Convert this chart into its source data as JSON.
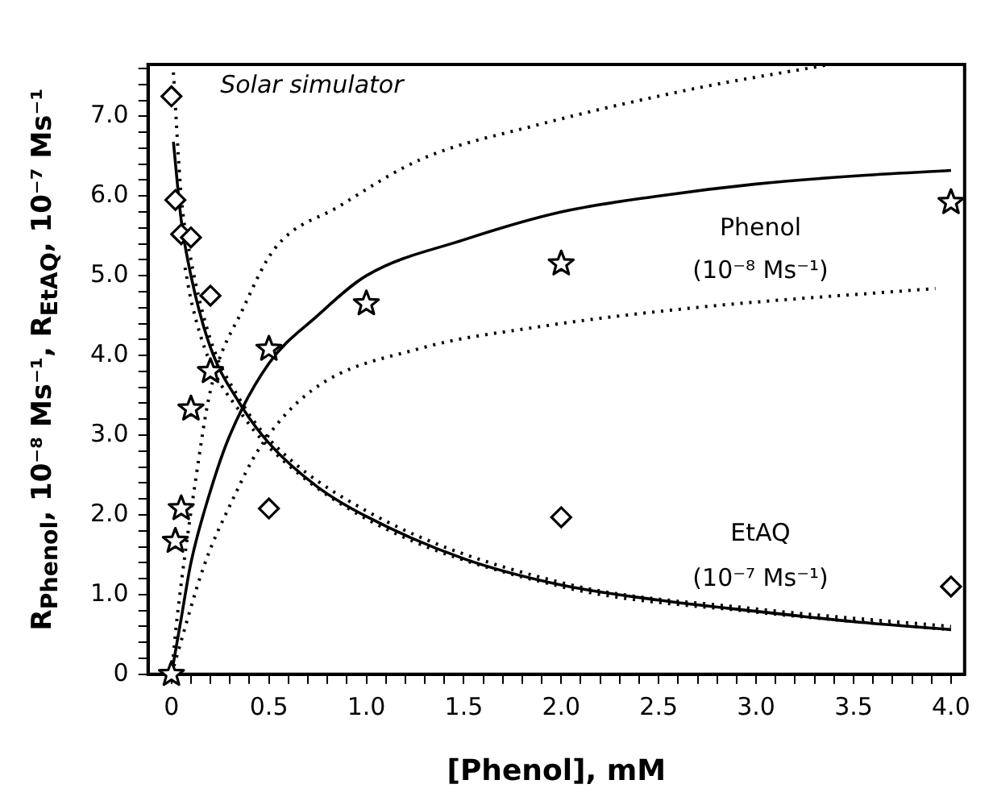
{
  "chart_data": {
    "type": "scatter",
    "title": "Solar simulator",
    "xlabel": "[Phenol], mM",
    "ylabel": "R$_{Phenol}$, 10⁻⁸ Ms⁻¹, R$_{EtAQ}$, 10⁻⁷ Ms⁻¹",
    "xlim": [
      -0.12,
      4.07
    ],
    "ylim": [
      0,
      7.65
    ],
    "xticks": [
      0,
      {
        "value": 0.1,
        "label": null
      },
      {
        "value": 0.2,
        "label": null
      },
      {
        "value": 0.3,
        "label": null
      },
      {
        "value": 0.4,
        "label": null
      },
      0.5,
      {
        "value": 0.6,
        "label": null
      },
      {
        "value": 0.7,
        "label": null
      },
      {
        "value": 0.8,
        "label": null
      },
      {
        "value": 0.9,
        "label": null
      },
      {
        "value": 1,
        "label": "1.0"
      },
      {
        "value": 1.1,
        "label": null
      },
      {
        "value": 1.2,
        "label": null
      },
      {
        "value": 1.3,
        "label": null
      },
      {
        "value": 1.4,
        "label": null
      },
      1.5,
      {
        "value": 1.6,
        "label": null
      },
      {
        "value": 1.7,
        "label": null
      },
      {
        "value": 1.8,
        "label": null
      },
      {
        "value": 1.9,
        "label": null
      },
      {
        "value": 2,
        "label": "2.0"
      },
      {
        "value": 2.1,
        "label": null
      },
      {
        "value": 2.2,
        "label": null
      },
      {
        "value": 2.3,
        "label": null
      },
      {
        "value": 2.4,
        "label": null
      },
      2.5,
      {
        "value": 2.6,
        "label": null
      },
      {
        "value": 2.7,
        "label": null
      },
      {
        "value": 2.8,
        "label": null
      },
      {
        "value": 2.9,
        "label": null
      },
      {
        "value": 3,
        "label": "3.0"
      },
      {
        "value": 3.1,
        "label": null
      },
      {
        "value": 3.2,
        "label": null
      },
      {
        "value": 3.3,
        "label": null
      },
      {
        "value": 3.4,
        "label": null
      },
      3.5,
      {
        "value": 3.6,
        "label": null
      },
      {
        "value": 3.7,
        "label": null
      },
      {
        "value": 3.8,
        "label": null
      },
      {
        "value": 3.9,
        "label": null
      },
      {
        "value": 4,
        "label": "4.0"
      }
    ],
    "yticks": [
      0,
      {
        "value": 0.2,
        "label": null
      },
      {
        "value": 0.4,
        "label": null
      },
      {
        "value": 0.6,
        "label": null
      },
      {
        "value": 0.8,
        "label": null
      },
      {
        "value": 1,
        "label": "1.0"
      },
      {
        "value": 1.2,
        "label": null
      },
      {
        "value": 1.4,
        "label": null
      },
      {
        "value": 1.6,
        "label": null
      },
      {
        "value": 1.8,
        "label": null
      },
      {
        "value": 2,
        "label": "2.0"
      },
      {
        "value": 2.2,
        "label": null
      },
      {
        "value": 2.4,
        "label": null
      },
      {
        "value": 2.6,
        "label": null
      },
      {
        "value": 2.8,
        "label": null
      },
      {
        "value": 3,
        "label": "3.0"
      },
      {
        "value": 3.2,
        "label": null
      },
      {
        "value": 3.4,
        "label": null
      },
      {
        "value": 3.6,
        "label": null
      },
      {
        "value": 3.8,
        "label": null
      },
      {
        "value": 4,
        "label": "4.0"
      },
      {
        "value": 4.2,
        "label": null
      },
      {
        "value": 4.4,
        "label": null
      },
      {
        "value": 4.6,
        "label": null
      },
      {
        "value": 4.8,
        "label": null
      },
      {
        "value": 5,
        "label": "5.0"
      },
      {
        "value": 5.2,
        "label": null
      },
      {
        "value": 5.4,
        "label": null
      },
      {
        "value": 5.6,
        "label": null
      },
      {
        "value": 5.8,
        "label": null
      },
      {
        "value": 6,
        "label": "6.0"
      },
      {
        "value": 6.2,
        "label": null
      },
      {
        "value": 6.4,
        "label": null
      },
      {
        "value": 6.6,
        "label": null
      },
      {
        "value": 6.8,
        "label": null
      },
      {
        "value": 7,
        "label": "7.0"
      },
      {
        "value": 7.2,
        "label": null
      },
      {
        "value": 7.4,
        "label": null
      },
      {
        "value": 7.6,
        "label": null
      }
    ],
    "grid": false,
    "legend": false,
    "series": [
      {
        "type": "scatter",
        "marker": "diamond",
        "color": "#000000",
        "x": [
          0,
          0.02,
          0.05,
          0.1,
          0.2,
          0.5,
          2,
          4
        ],
        "values": [
          7.25,
          5.95,
          5.52,
          5.48,
          4.75,
          2.08,
          1.97,
          1.1
        ]
      },
      {
        "type": "scatter",
        "marker": "star",
        "color": "#000000",
        "x": [
          0,
          0.02,
          0.05,
          0.1,
          0.2,
          0.5,
          1,
          2,
          4
        ],
        "values": [
          0,
          1.67,
          2.08,
          3.33,
          3.8,
          4.08,
          4.65,
          5.15,
          5.92
        ]
      },
      {
        "type": "line",
        "marker": "none",
        "line_style": "solid",
        "color": "#000000",
        "x": [
          0,
          0.05,
          0.1,
          0.2,
          0.3,
          0.5,
          0.75,
          1,
          1.5,
          2,
          2.5,
          3,
          3.5,
          4
        ],
        "values": [
          0,
          0.7,
          1.4,
          2.3,
          3.0,
          3.9,
          4.5,
          5.0,
          5.45,
          5.8,
          6.0,
          6.15,
          6.25,
          6.32
        ]
      },
      {
        "type": "line",
        "marker": "none",
        "line_style": "solid",
        "color": "#000000",
        "x": [
          0.01,
          0.05,
          0.1,
          0.2,
          0.35,
          0.5,
          0.75,
          1,
          1.5,
          2,
          2.5,
          3,
          3.5,
          4
        ],
        "values": [
          6.68,
          5.7,
          5.0,
          4.1,
          3.4,
          2.9,
          2.35,
          1.98,
          1.45,
          1.12,
          0.93,
          0.79,
          0.66,
          0.56
        ]
      },
      {
        "type": "line",
        "marker": "none",
        "line_style": "dotted",
        "color": "#000000",
        "x": [
          0,
          0.03,
          0.12,
          0.2,
          0.37,
          0.53,
          0.86,
          1.28,
          1.86,
          2.69,
          3.38
        ],
        "values": [
          0,
          0.73,
          2.37,
          3.56,
          4.6,
          5.34,
          5.87,
          6.46,
          6.88,
          7.35,
          7.65
        ]
      },
      {
        "type": "line",
        "marker": "none",
        "line_style": "dotted",
        "color": "#000000",
        "x": [
          0,
          0.17,
          0.31,
          0.45,
          0.72,
          1.28,
          1.86,
          2.69,
          3.92
        ],
        "values": [
          0,
          1.38,
          2.17,
          2.83,
          3.56,
          4.09,
          4.35,
          4.6,
          4.84
        ]
      },
      {
        "type": "line",
        "marker": "none",
        "line_style": "dotted",
        "color": "#000000",
        "x": [
          0.01,
          0.05,
          0.1,
          0.2,
          0.35,
          0.5,
          1,
          2,
          3,
          4
        ],
        "values": [
          7.55,
          6.0,
          5.2,
          4.2,
          3.45,
          2.95,
          2.05,
          1.15,
          0.82,
          0.6
        ]
      },
      {
        "type": "line",
        "marker": "none",
        "line_style": "dotted",
        "color": "#000000",
        "x": [
          0.07,
          0.1,
          0.2,
          0.35,
          0.5,
          1,
          2,
          3,
          4
        ],
        "values": [
          5.1,
          4.7,
          3.9,
          3.3,
          2.85,
          1.95,
          1.1,
          0.78,
          0.56
        ]
      }
    ],
    "annotations": [
      "Phenol",
      "(10⁻⁸ Ms⁻¹)",
      "EtAQ",
      "(10⁻⁷ Ms⁻¹)"
    ]
  }
}
